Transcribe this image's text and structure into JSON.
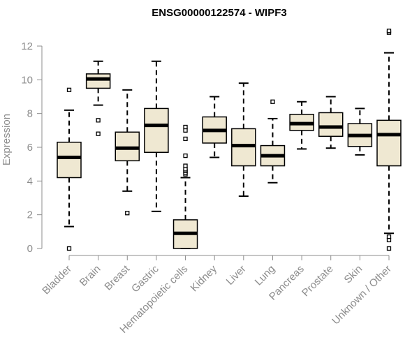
{
  "chart_data": {
    "type": "boxplot",
    "title": "ENSG00000122574 - WIPF3",
    "xlabel": "",
    "ylabel": "Expression",
    "ylim": [
      0,
      12.6
    ],
    "yticks": [
      0,
      2,
      4,
      6,
      8,
      10,
      12
    ],
    "box_fill": "#efe8d2",
    "categories": [
      "Bladder",
      "Brain",
      "Breast",
      "Gastric",
      "Hematopoietic cells",
      "Kidney",
      "Liver",
      "Lung",
      "Pancreas",
      "Prostate",
      "Skin",
      "Unknown / Other"
    ],
    "series": [
      {
        "name": "Bladder",
        "whisker_low": 1.3,
        "q1": 4.2,
        "median": 5.4,
        "q3": 6.3,
        "whisker_high": 8.2,
        "outliers": [
          0.0,
          9.4
        ]
      },
      {
        "name": "Brain",
        "whisker_low": 8.5,
        "q1": 9.5,
        "median": 10.05,
        "q3": 10.35,
        "whisker_high": 11.1,
        "outliers": [
          7.6,
          6.8
        ]
      },
      {
        "name": "Breast",
        "whisker_low": 3.4,
        "q1": 5.2,
        "median": 5.95,
        "q3": 6.9,
        "whisker_high": 9.4,
        "outliers": [
          2.1
        ]
      },
      {
        "name": "Gastric",
        "whisker_low": 2.2,
        "q1": 5.7,
        "median": 7.3,
        "q3": 8.3,
        "whisker_high": 11.1,
        "outliers": []
      },
      {
        "name": "Hematopoietic cells",
        "whisker_low": 0.0,
        "q1": 0.0,
        "median": 0.9,
        "q3": 1.7,
        "whisker_high": 4.2,
        "outliers": [
          4.4,
          4.5,
          4.6,
          4.7,
          4.9,
          5.5,
          6.5,
          7.0,
          7.2
        ]
      },
      {
        "name": "Kidney",
        "whisker_low": 5.4,
        "q1": 6.25,
        "median": 7.0,
        "q3": 7.8,
        "whisker_high": 9.0,
        "outliers": []
      },
      {
        "name": "Liver",
        "whisker_low": 3.1,
        "q1": 4.9,
        "median": 6.1,
        "q3": 7.1,
        "whisker_high": 9.8,
        "outliers": []
      },
      {
        "name": "Lung",
        "whisker_low": 3.9,
        "q1": 4.9,
        "median": 5.5,
        "q3": 6.1,
        "whisker_high": 7.7,
        "outliers": [
          8.7
        ]
      },
      {
        "name": "Pancreas",
        "whisker_low": 5.9,
        "q1": 7.0,
        "median": 7.4,
        "q3": 7.95,
        "whisker_high": 8.7,
        "outliers": []
      },
      {
        "name": "Prostate",
        "whisker_low": 5.95,
        "q1": 6.65,
        "median": 7.2,
        "q3": 8.05,
        "whisker_high": 9.0,
        "outliers": []
      },
      {
        "name": "Skin",
        "whisker_low": 5.55,
        "q1": 6.05,
        "median": 6.7,
        "q3": 7.4,
        "whisker_high": 8.3,
        "outliers": []
      },
      {
        "name": "Unknown / Other",
        "whisker_low": 0.9,
        "q1": 4.9,
        "median": 6.75,
        "q3": 7.6,
        "whisker_high": 11.6,
        "outliers": [
          0.0,
          0.5,
          0.7,
          12.8,
          12.9
        ]
      }
    ]
  }
}
